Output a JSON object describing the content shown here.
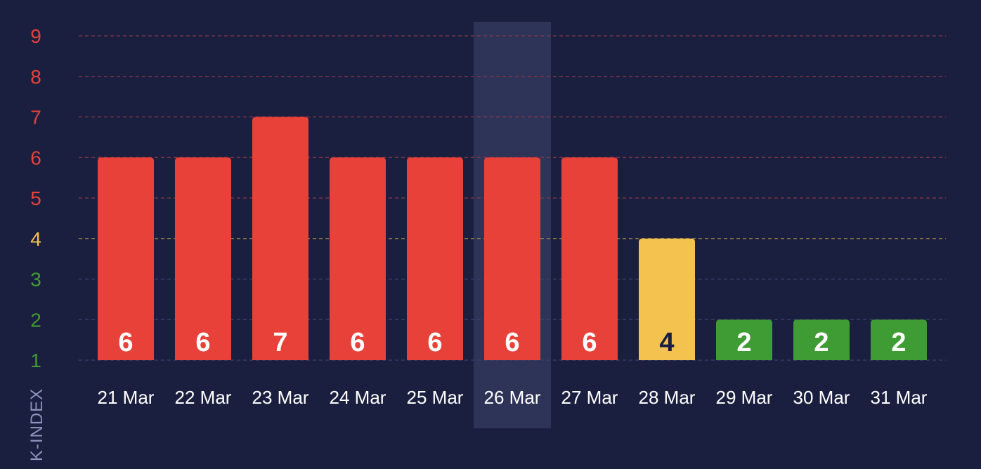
{
  "chart_data": {
    "type": "bar",
    "ylabel": "K-INDEX",
    "xlabel": "",
    "title": "",
    "categories": [
      "21 Mar",
      "22 Mar",
      "23 Mar",
      "24 Mar",
      "25 Mar",
      "26 Mar",
      "27 Mar",
      "28 Mar",
      "29 Mar",
      "30 Mar",
      "31 Mar"
    ],
    "values": [
      6,
      6,
      7,
      6,
      6,
      6,
      6,
      4,
      2,
      2,
      2
    ],
    "value_labels": [
      "6",
      "6",
      "7",
      "6",
      "6",
      "6",
      "6",
      "4",
      "2",
      "2",
      "2"
    ],
    "ylim": [
      1,
      9
    ],
    "yticks": [
      "1",
      "2",
      "3",
      "4",
      "5",
      "6",
      "7",
      "8",
      "9"
    ],
    "highlighted_category": "26 Mar",
    "grid": true,
    "grid_style": "dashed",
    "colors": {
      "background": "#1b1f3f",
      "storm": "#e8413a",
      "active": "#f3c24f",
      "quiet": "#3f9b34",
      "highlight": "#2e3358",
      "grid_quiet": "#3b4270",
      "grid_active": "#9a8548",
      "grid_storm": "#8a3846",
      "label_dark": "#1b1f3f",
      "label_light": "#ffffff"
    }
  }
}
